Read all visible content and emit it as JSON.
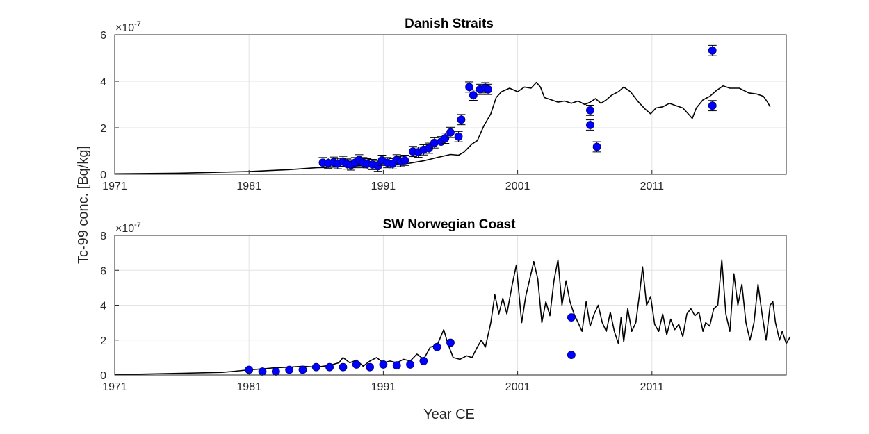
{
  "figure": {
    "shared_ylabel": "Tc-99 conc. [Bq/kg]",
    "shared_xlabel": "Year CE",
    "x_ticks": [
      "1971",
      "1981",
      "1991",
      "2001",
      "2011"
    ]
  },
  "colors": {
    "marker": "#0000ff",
    "marker_edge": "#00007a",
    "line": "#000000",
    "grid": "#e3e3e3",
    "axes": "#262626"
  },
  "chart_data": [
    {
      "type": "scatter",
      "title": "Danish Straits",
      "xlabel": "",
      "ylabel": "Tc-99 conc. [Bq/kg]",
      "exponent_label": "×10",
      "exponent_power": "-7",
      "xlim": [
        1971,
        2021
      ],
      "ylim": [
        0,
        6
      ],
      "y_ticks": [
        "0",
        "2",
        "4",
        "6"
      ],
      "grid": true,
      "series": [
        {
          "kind": "line",
          "points": [
            [
              1971,
              0.02
            ],
            [
              1976,
              0.05
            ],
            [
              1981,
              0.12
            ],
            [
              1984,
              0.2
            ],
            [
              1986,
              0.28
            ],
            [
              1988,
              0.34
            ],
            [
              1990,
              0.38
            ],
            [
              1991,
              0.4
            ],
            [
              1992,
              0.42
            ],
            [
              1993,
              0.48
            ],
            [
              1994,
              0.58
            ],
            [
              1995,
              0.72
            ],
            [
              1996,
              0.85
            ],
            [
              1996.6,
              0.82
            ],
            [
              1997,
              0.95
            ],
            [
              1997.6,
              1.3
            ],
            [
              1998,
              1.45
            ],
            [
              1998.5,
              2.1
            ],
            [
              1999,
              2.6
            ],
            [
              1999.4,
              3.3
            ],
            [
              1999.8,
              3.55
            ],
            [
              2000.4,
              3.7
            ],
            [
              2001,
              3.55
            ],
            [
              2001.5,
              3.75
            ],
            [
              2002,
              3.7
            ],
            [
              2002.4,
              3.95
            ],
            [
              2002.7,
              3.75
            ],
            [
              2003,
              3.3
            ],
            [
              2003.5,
              3.2
            ],
            [
              2004,
              3.1
            ],
            [
              2004.5,
              3.15
            ],
            [
              2005,
              3.05
            ],
            [
              2005.5,
              3.15
            ],
            [
              2006,
              3.0
            ],
            [
              2006.4,
              3.1
            ],
            [
              2006.8,
              3.25
            ],
            [
              2007.2,
              3.05
            ],
            [
              2007.6,
              3.2
            ],
            [
              2008,
              3.4
            ],
            [
              2008.5,
              3.55
            ],
            [
              2008.9,
              3.75
            ],
            [
              2009.4,
              3.55
            ],
            [
              2010,
              3.1
            ],
            [
              2010.5,
              2.8
            ],
            [
              2010.9,
              2.6
            ],
            [
              2011.3,
              2.85
            ],
            [
              2011.8,
              2.9
            ],
            [
              2012.3,
              3.05
            ],
            [
              2012.8,
              2.95
            ],
            [
              2013.3,
              2.85
            ],
            [
              2013.7,
              2.6
            ],
            [
              2014,
              2.4
            ],
            [
              2014.3,
              2.85
            ],
            [
              2014.8,
              3.2
            ],
            [
              2015.3,
              3.35
            ],
            [
              2015.8,
              3.6
            ],
            [
              2016.3,
              3.8
            ],
            [
              2016.8,
              3.7
            ],
            [
              2017.5,
              3.7
            ],
            [
              2018.2,
              3.5
            ],
            [
              2018.8,
              3.45
            ],
            [
              2019.3,
              3.35
            ],
            [
              2019.6,
              3.1
            ],
            [
              2019.8,
              2.9
            ]
          ]
        },
        {
          "kind": "markers",
          "error_bars": true,
          "points": [
            [
              1986.5,
              0.5
            ],
            [
              1986.9,
              0.48
            ],
            [
              1987.3,
              0.52
            ],
            [
              1987.6,
              0.46
            ],
            [
              1988,
              0.55
            ],
            [
              1988.3,
              0.44
            ],
            [
              1988.6,
              0.4
            ],
            [
              1988.9,
              0.5
            ],
            [
              1989.2,
              0.62
            ],
            [
              1989.5,
              0.5
            ],
            [
              1989.8,
              0.45
            ],
            [
              1990.2,
              0.42
            ],
            [
              1990.6,
              0.35
            ],
            [
              1990.9,
              0.6
            ],
            [
              1991.3,
              0.5
            ],
            [
              1991.7,
              0.45
            ],
            [
              1992,
              0.62
            ],
            [
              1992.3,
              0.55
            ],
            [
              1992.6,
              0.6
            ],
            [
              1993.2,
              0.98
            ],
            [
              1993.6,
              0.95
            ],
            [
              1994,
              1.05
            ],
            [
              1994.4,
              1.12
            ],
            [
              1994.8,
              1.35
            ],
            [
              1995.3,
              1.4
            ],
            [
              1995.6,
              1.55
            ],
            [
              1996,
              1.8
            ],
            [
              1996.6,
              1.62
            ],
            [
              1996.8,
              2.35
            ],
            [
              1997.4,
              3.75
            ],
            [
              1997.7,
              3.4
            ],
            [
              1998.2,
              3.65
            ],
            [
              1998.6,
              3.72
            ],
            [
              1998.8,
              3.65
            ],
            [
              2006.4,
              2.75
            ],
            [
              2006.4,
              2.12
            ],
            [
              2006.9,
              1.18
            ],
            [
              2015.5,
              5.32
            ],
            [
              2015.5,
              2.95
            ]
          ]
        }
      ]
    },
    {
      "type": "scatter",
      "title": "SW Norwegian Coast",
      "xlabel": "Year CE",
      "ylabel": "Tc-99 conc. [Bq/kg]",
      "exponent_label": "×10",
      "exponent_power": "-7",
      "xlim": [
        1971,
        2021
      ],
      "ylim": [
        0,
        8
      ],
      "y_ticks": [
        "0",
        "2",
        "4",
        "6",
        "8"
      ],
      "grid": true,
      "series": [
        {
          "kind": "line",
          "points": [
            [
              1971,
              0.02
            ],
            [
              1976,
              0.1
            ],
            [
              1979,
              0.15
            ],
            [
              1980,
              0.22
            ],
            [
              1981,
              0.3
            ],
            [
              1982,
              0.35
            ],
            [
              1983,
              0.42
            ],
            [
              1984,
              0.45
            ],
            [
              1985,
              0.5
            ],
            [
              1986,
              0.45
            ],
            [
              1987,
              0.55
            ],
            [
              1987.7,
              0.7
            ],
            [
              1988,
              1.0
            ],
            [
              1988.5,
              0.7
            ],
            [
              1989,
              0.85
            ],
            [
              1989.5,
              0.5
            ],
            [
              1990,
              0.8
            ],
            [
              1990.5,
              1.0
            ],
            [
              1991,
              0.7
            ],
            [
              1991.5,
              0.8
            ],
            [
              1992,
              0.7
            ],
            [
              1992.5,
              0.9
            ],
            [
              1993,
              0.8
            ],
            [
              1993.5,
              1.2
            ],
            [
              1994,
              0.9
            ],
            [
              1994.5,
              1.6
            ],
            [
              1995,
              1.7
            ],
            [
              1995.5,
              2.6
            ],
            [
              1995.8,
              1.8
            ],
            [
              1996.2,
              1.0
            ],
            [
              1996.7,
              0.9
            ],
            [
              1997.2,
              1.1
            ],
            [
              1997.6,
              1.0
            ],
            [
              1998,
              1.6
            ],
            [
              1998.3,
              2.0
            ],
            [
              1998.6,
              1.6
            ],
            [
              1999,
              3.0
            ],
            [
              1999.3,
              4.6
            ],
            [
              1999.6,
              3.5
            ],
            [
              1999.9,
              4.4
            ],
            [
              2000.2,
              3.5
            ],
            [
              2000.6,
              5.2
            ],
            [
              2000.9,
              6.3
            ],
            [
              2001.3,
              3.0
            ],
            [
              2001.6,
              4.5
            ],
            [
              2001.9,
              5.5
            ],
            [
              2002.2,
              6.5
            ],
            [
              2002.5,
              5.5
            ],
            [
              2002.8,
              3.0
            ],
            [
              2003.1,
              4.2
            ],
            [
              2003.4,
              3.4
            ],
            [
              2003.7,
              5.4
            ],
            [
              2004,
              6.6
            ],
            [
              2004.3,
              4.0
            ],
            [
              2004.6,
              5.4
            ],
            [
              2004.9,
              4.2
            ],
            [
              2005.2,
              3.5
            ],
            [
              2005.5,
              3.0
            ],
            [
              2005.8,
              2.5
            ],
            [
              2006.1,
              4.2
            ],
            [
              2006.4,
              2.8
            ],
            [
              2006.7,
              3.5
            ],
            [
              2007,
              4.0
            ],
            [
              2007.3,
              3.0
            ],
            [
              2007.6,
              2.5
            ],
            [
              2007.9,
              3.6
            ],
            [
              2008.2,
              2.5
            ],
            [
              2008.5,
              1.8
            ],
            [
              2008.7,
              3.3
            ],
            [
              2008.9,
              1.9
            ],
            [
              2009.2,
              3.8
            ],
            [
              2009.5,
              2.5
            ],
            [
              2009.8,
              3.0
            ],
            [
              2010.1,
              4.8
            ],
            [
              2010.3,
              6.2
            ],
            [
              2010.6,
              4.0
            ],
            [
              2010.9,
              4.5
            ],
            [
              2011.2,
              2.9
            ],
            [
              2011.5,
              2.5
            ],
            [
              2011.8,
              3.5
            ],
            [
              2012.1,
              2.3
            ],
            [
              2012.4,
              3.2
            ],
            [
              2012.7,
              2.6
            ],
            [
              2013,
              2.9
            ],
            [
              2013.3,
              2.2
            ],
            [
              2013.6,
              3.5
            ],
            [
              2013.9,
              3.8
            ],
            [
              2014.2,
              3.4
            ],
            [
              2014.5,
              3.6
            ],
            [
              2014.8,
              2.5
            ],
            [
              2015,
              3.0
            ],
            [
              2015.3,
              2.8
            ],
            [
              2015.6,
              3.8
            ],
            [
              2015.9,
              4.0
            ],
            [
              2016.2,
              6.6
            ],
            [
              2016.5,
              3.5
            ],
            [
              2016.8,
              2.5
            ],
            [
              2017.1,
              5.8
            ],
            [
              2017.4,
              4.0
            ],
            [
              2017.7,
              5.2
            ],
            [
              2018,
              3.0
            ],
            [
              2018.3,
              2.0
            ],
            [
              2018.6,
              3.0
            ],
            [
              2018.9,
              5.2
            ],
            [
              2019.2,
              3.5
            ],
            [
              2019.5,
              2.0
            ],
            [
              2019.8,
              4.0
            ],
            [
              2020,
              4.2
            ],
            [
              2020.2,
              3.0
            ],
            [
              2020.5,
              2.0
            ],
            [
              2020.7,
              2.5
            ],
            [
              2021,
              1.8
            ],
            [
              2021.3,
              2.2
            ]
          ]
        },
        {
          "kind": "markers",
          "error_bars": false,
          "points": [
            [
              1981,
              0.3
            ],
            [
              1982,
              0.2
            ],
            [
              1983,
              0.2
            ],
            [
              1984,
              0.3
            ],
            [
              1985,
              0.3
            ],
            [
              1986,
              0.45
            ],
            [
              1987,
              0.45
            ],
            [
              1988,
              0.45
            ],
            [
              1989,
              0.6
            ],
            [
              1990,
              0.45
            ],
            [
              1991,
              0.6
            ],
            [
              1992,
              0.55
            ],
            [
              1993,
              0.6
            ],
            [
              1994,
              0.8
            ],
            [
              1995,
              1.6
            ],
            [
              1996,
              1.85
            ],
            [
              2005,
              3.3
            ],
            [
              2005,
              1.15
            ]
          ]
        }
      ]
    }
  ]
}
